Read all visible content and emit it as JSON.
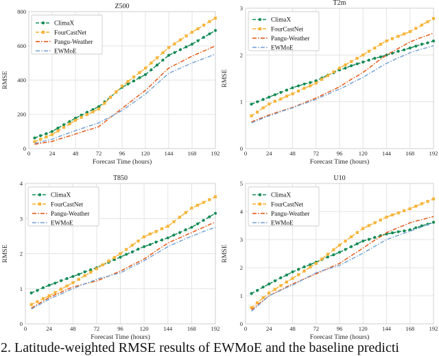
{
  "figure": {
    "caption": "2. Latitude-weighted RMSE results of EWMoE and the baseline predicti",
    "shared_xlabel": "Forecast Time (hours)",
    "shared_ylabel": "RMSE"
  },
  "colors": {
    "climax": "#118a54",
    "fourcastnet": "#f8b43a",
    "pangu_weather": "#e65510",
    "ewmoe": "#74a3d6",
    "grid": "#e3e3e3",
    "spine": "#cfcfcf",
    "text": "#262626"
  },
  "chart_data": [
    {
      "type": "line",
      "title": "Z500",
      "xlabel": "Forecast Time (hours)",
      "ylabel": "RMSE",
      "xlim": [
        0,
        192
      ],
      "ylim": [
        0,
        800
      ],
      "xticks": [
        0,
        24,
        48,
        72,
        96,
        120,
        144,
        168,
        192
      ],
      "yticks": [
        0,
        200,
        400,
        600,
        800
      ],
      "grid": true,
      "legend_position": "upper-left",
      "x": [
        6,
        12,
        18,
        24,
        30,
        36,
        42,
        48,
        54,
        60,
        66,
        72,
        78,
        84,
        90,
        96,
        102,
        108,
        114,
        120,
        126,
        132,
        138,
        144,
        150,
        156,
        162,
        168,
        174,
        180,
        186,
        192
      ],
      "series": [
        {
          "name": "ClimaX",
          "color": "#118a54",
          "linestyle": "dashed",
          "marker": "circle",
          "values": [
            62,
            75,
            87,
            100,
            120,
            139,
            158,
            178,
            195,
            212,
            228,
            245,
            273,
            301,
            330,
            358,
            377,
            395,
            414,
            432,
            460,
            488,
            517,
            545,
            561,
            578,
            594,
            610,
            630,
            650,
            670,
            690
          ]
        },
        {
          "name": "FourCastNet",
          "color": "#f8b43a",
          "linestyle": "dashed",
          "marker": "square",
          "values": [
            40,
            54,
            68,
            82,
            103,
            124,
            144,
            165,
            182,
            199,
            215,
            232,
            265,
            299,
            332,
            365,
            391,
            418,
            444,
            470,
            500,
            530,
            560,
            590,
            612,
            635,
            658,
            680,
            700,
            721,
            742,
            762
          ]
        },
        {
          "name": "Pangu-Weather",
          "color": "#e65510",
          "linestyle": "dashdot",
          "marker": "none",
          "values": [
            25,
            31,
            36,
            42,
            53,
            64,
            74,
            85,
            96,
            107,
            117,
            128,
            155,
            182,
            208,
            235,
            261,
            288,
            314,
            340,
            372,
            405,
            438,
            470,
            488,
            505,
            523,
            540,
            555,
            570,
            585,
            600
          ]
        },
        {
          "name": "EWMoE",
          "color": "#74a3d6",
          "linestyle": "dashdot",
          "marker": "none",
          "values": [
            30,
            38,
            47,
            55,
            68,
            80,
            93,
            105,
            116,
            128,
            139,
            150,
            168,
            186,
            204,
            222,
            246,
            270,
            294,
            318,
            349,
            379,
            410,
            440,
            455,
            470,
            485,
            500,
            513,
            526,
            539,
            552
          ]
        }
      ]
    },
    {
      "type": "line",
      "title": "T2m",
      "xlabel": "Forecast Time (hours)",
      "ylabel": "RMSE",
      "xlim": [
        0,
        192
      ],
      "ylim": [
        0,
        3
      ],
      "xticks": [
        0,
        24,
        48,
        72,
        96,
        120,
        144,
        168,
        192
      ],
      "yticks": [
        0,
        1,
        2,
        3
      ],
      "grid": true,
      "legend_position": "upper-left",
      "x": [
        6,
        12,
        18,
        24,
        30,
        36,
        42,
        48,
        54,
        60,
        66,
        72,
        78,
        84,
        90,
        96,
        102,
        108,
        114,
        120,
        126,
        132,
        138,
        144,
        150,
        156,
        162,
        168,
        174,
        180,
        186,
        192
      ],
      "series": [
        {
          "name": "ClimaX",
          "color": "#118a54",
          "linestyle": "dashed",
          "marker": "circle",
          "values": [
            0.95,
            1.0,
            1.05,
            1.1,
            1.15,
            1.2,
            1.25,
            1.3,
            1.34,
            1.38,
            1.41,
            1.45,
            1.51,
            1.57,
            1.62,
            1.68,
            1.72,
            1.77,
            1.81,
            1.85,
            1.89,
            1.93,
            1.96,
            2.0,
            2.04,
            2.08,
            2.11,
            2.15,
            2.19,
            2.23,
            2.26,
            2.3
          ]
        },
        {
          "name": "FourCastNet",
          "color": "#f8b43a",
          "linestyle": "dashed",
          "marker": "square",
          "values": [
            0.7,
            0.78,
            0.87,
            0.95,
            1.01,
            1.06,
            1.12,
            1.17,
            1.23,
            1.29,
            1.34,
            1.4,
            1.48,
            1.56,
            1.64,
            1.72,
            1.79,
            1.86,
            1.93,
            2.0,
            2.08,
            2.15,
            2.23,
            2.3,
            2.35,
            2.4,
            2.45,
            2.5,
            2.57,
            2.64,
            2.71,
            2.78
          ]
        },
        {
          "name": "Pangu-Weather",
          "color": "#e65510",
          "linestyle": "dashdot",
          "marker": "none",
          "values": [
            0.57,
            0.62,
            0.67,
            0.72,
            0.76,
            0.8,
            0.84,
            0.88,
            0.93,
            0.98,
            1.03,
            1.08,
            1.14,
            1.2,
            1.26,
            1.32,
            1.4,
            1.48,
            1.55,
            1.63,
            1.72,
            1.82,
            1.91,
            2.0,
            2.07,
            2.14,
            2.21,
            2.28,
            2.33,
            2.38,
            2.42,
            2.47
          ]
        },
        {
          "name": "EWMoE",
          "color": "#74a3d6",
          "linestyle": "dashdot",
          "marker": "none",
          "values": [
            0.55,
            0.6,
            0.65,
            0.7,
            0.74,
            0.79,
            0.83,
            0.87,
            0.92,
            0.96,
            1.01,
            1.05,
            1.11,
            1.16,
            1.22,
            1.27,
            1.33,
            1.4,
            1.46,
            1.52,
            1.6,
            1.67,
            1.75,
            1.82,
            1.88,
            1.94,
            1.99,
            2.05,
            2.09,
            2.13,
            2.16,
            2.2
          ]
        }
      ]
    },
    {
      "type": "line",
      "title": "T850",
      "xlabel": "Forecast Time (hours)",
      "ylabel": "RMSE",
      "xlim": [
        0,
        192
      ],
      "ylim": [
        0,
        4
      ],
      "xticks": [
        0,
        24,
        48,
        72,
        96,
        120,
        144,
        168,
        192
      ],
      "yticks": [
        0,
        1,
        2,
        3,
        4
      ],
      "grid": true,
      "legend_position": "upper-left",
      "x": [
        6,
        12,
        18,
        24,
        30,
        36,
        42,
        48,
        54,
        60,
        66,
        72,
        78,
        84,
        90,
        96,
        102,
        108,
        114,
        120,
        126,
        132,
        138,
        144,
        150,
        156,
        162,
        168,
        174,
        180,
        186,
        192
      ],
      "series": [
        {
          "name": "ClimaX",
          "color": "#118a54",
          "linestyle": "dashed",
          "marker": "circle",
          "values": [
            0.88,
            0.95,
            1.03,
            1.1,
            1.16,
            1.23,
            1.29,
            1.35,
            1.41,
            1.48,
            1.54,
            1.6,
            1.68,
            1.75,
            1.83,
            1.9,
            1.98,
            2.05,
            2.13,
            2.2,
            2.26,
            2.33,
            2.39,
            2.45,
            2.53,
            2.6,
            2.68,
            2.75,
            2.85,
            2.95,
            3.05,
            3.15
          ]
        },
        {
          "name": "FourCastNet",
          "color": "#f8b43a",
          "linestyle": "dashed",
          "marker": "square",
          "values": [
            0.55,
            0.63,
            0.72,
            0.8,
            0.89,
            0.99,
            1.08,
            1.17,
            1.27,
            1.37,
            1.47,
            1.57,
            1.68,
            1.79,
            1.89,
            2.0,
            2.12,
            2.24,
            2.36,
            2.48,
            2.56,
            2.63,
            2.71,
            2.78,
            2.91,
            3.04,
            3.17,
            3.3,
            3.38,
            3.46,
            3.54,
            3.62
          ]
        },
        {
          "name": "Pangu-Weather",
          "color": "#e65510",
          "linestyle": "dashdot",
          "marker": "none",
          "values": [
            0.45,
            0.55,
            0.65,
            0.75,
            0.83,
            0.9,
            0.98,
            1.05,
            1.09,
            1.14,
            1.18,
            1.22,
            1.29,
            1.36,
            1.43,
            1.5,
            1.59,
            1.68,
            1.76,
            1.85,
            1.96,
            2.08,
            2.19,
            2.3,
            2.38,
            2.45,
            2.53,
            2.6,
            2.68,
            2.75,
            2.83,
            2.9
          ]
        },
        {
          "name": "EWMoE",
          "color": "#74a3d6",
          "linestyle": "dashdot",
          "marker": "none",
          "values": [
            0.42,
            0.51,
            0.61,
            0.7,
            0.78,
            0.85,
            0.93,
            1.0,
            1.07,
            1.14,
            1.2,
            1.27,
            1.32,
            1.36,
            1.41,
            1.45,
            1.54,
            1.63,
            1.71,
            1.8,
            1.9,
            2.0,
            2.1,
            2.2,
            2.28,
            2.35,
            2.43,
            2.5,
            2.56,
            2.63,
            2.69,
            2.75
          ]
        }
      ]
    },
    {
      "type": "line",
      "title": "U10",
      "xlabel": "Forecast Time (hours)",
      "ylabel": "RMSE",
      "xlim": [
        0,
        192
      ],
      "ylim": [
        0,
        5
      ],
      "xticks": [
        0,
        24,
        48,
        72,
        96,
        120,
        144,
        168,
        192
      ],
      "yticks": [
        0,
        1,
        2,
        3,
        4,
        5
      ],
      "grid": true,
      "legend_position": "upper-left",
      "x": [
        6,
        12,
        18,
        24,
        30,
        36,
        42,
        48,
        54,
        60,
        66,
        72,
        78,
        84,
        90,
        96,
        102,
        108,
        114,
        120,
        126,
        132,
        138,
        144,
        150,
        156,
        162,
        168,
        174,
        180,
        186,
        192
      ],
      "series": [
        {
          "name": "ClimaX",
          "color": "#118a54",
          "linestyle": "dashed",
          "marker": "circle",
          "values": [
            1.08,
            1.19,
            1.31,
            1.42,
            1.53,
            1.64,
            1.74,
            1.85,
            1.94,
            2.03,
            2.11,
            2.2,
            2.29,
            2.38,
            2.46,
            2.55,
            2.65,
            2.75,
            2.85,
            2.95,
            3.01,
            3.08,
            3.14,
            3.2,
            3.24,
            3.28,
            3.31,
            3.35,
            3.42,
            3.49,
            3.55,
            3.62
          ]
        },
        {
          "name": "FourCastNet",
          "color": "#f8b43a",
          "linestyle": "dashed",
          "marker": "square",
          "values": [
            0.58,
            0.75,
            0.93,
            1.1,
            1.23,
            1.36,
            1.49,
            1.62,
            1.75,
            1.88,
            2.02,
            2.15,
            2.31,
            2.48,
            2.64,
            2.8,
            2.95,
            3.1,
            3.25,
            3.4,
            3.5,
            3.6,
            3.7,
            3.8,
            3.88,
            3.95,
            4.03,
            4.1,
            4.19,
            4.28,
            4.36,
            4.45
          ]
        },
        {
          "name": "Pangu-Weather",
          "color": "#e65510",
          "linestyle": "dashdot",
          "marker": "none",
          "values": [
            0.5,
            0.67,
            0.83,
            1.0,
            1.11,
            1.21,
            1.32,
            1.42,
            1.51,
            1.6,
            1.69,
            1.78,
            1.87,
            1.97,
            2.06,
            2.15,
            2.29,
            2.43,
            2.56,
            2.7,
            2.84,
            2.98,
            3.11,
            3.25,
            3.34,
            3.43,
            3.51,
            3.6,
            3.66,
            3.71,
            3.77,
            3.82
          ]
        },
        {
          "name": "EWMoE",
          "color": "#74a3d6",
          "linestyle": "dashdot",
          "marker": "none",
          "values": [
            0.45,
            0.63,
            0.82,
            1.0,
            1.1,
            1.19,
            1.29,
            1.38,
            1.49,
            1.6,
            1.71,
            1.82,
            1.89,
            1.95,
            2.02,
            2.08,
            2.19,
            2.3,
            2.41,
            2.52,
            2.64,
            2.76,
            2.88,
            3.0,
            3.08,
            3.15,
            3.23,
            3.3,
            3.38,
            3.45,
            3.53,
            3.6
          ]
        }
      ]
    }
  ]
}
